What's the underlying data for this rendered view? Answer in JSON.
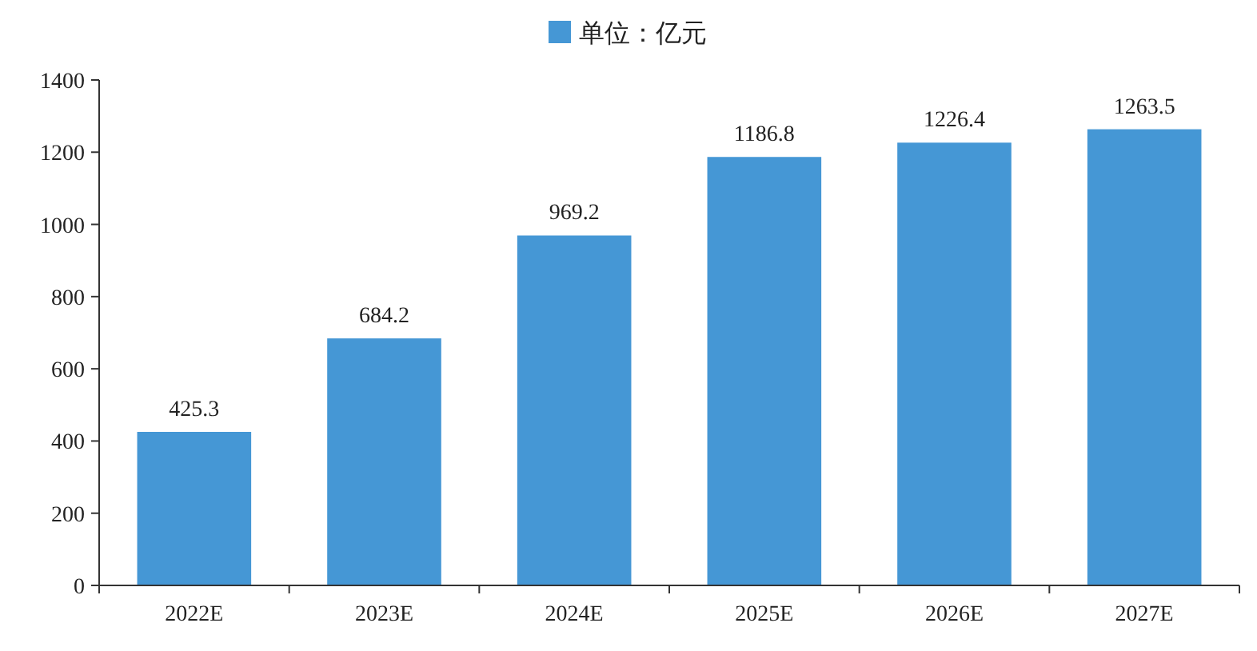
{
  "chart_data": {
    "type": "bar",
    "categories": [
      "2022E",
      "2023E",
      "2024E",
      "2025E",
      "2026E",
      "2027E"
    ],
    "series": [
      {
        "name": "单位：亿元",
        "color": "#4597d5",
        "values": [
          425.3,
          684.2,
          969.2,
          1186.8,
          1226.4,
          1263.5
        ]
      }
    ],
    "ylim": [
      0,
      1400
    ],
    "yticks": [
      0,
      200,
      400,
      600,
      800,
      1000,
      1200,
      1400
    ],
    "data_labels": true,
    "legend": "top",
    "grid": false
  }
}
